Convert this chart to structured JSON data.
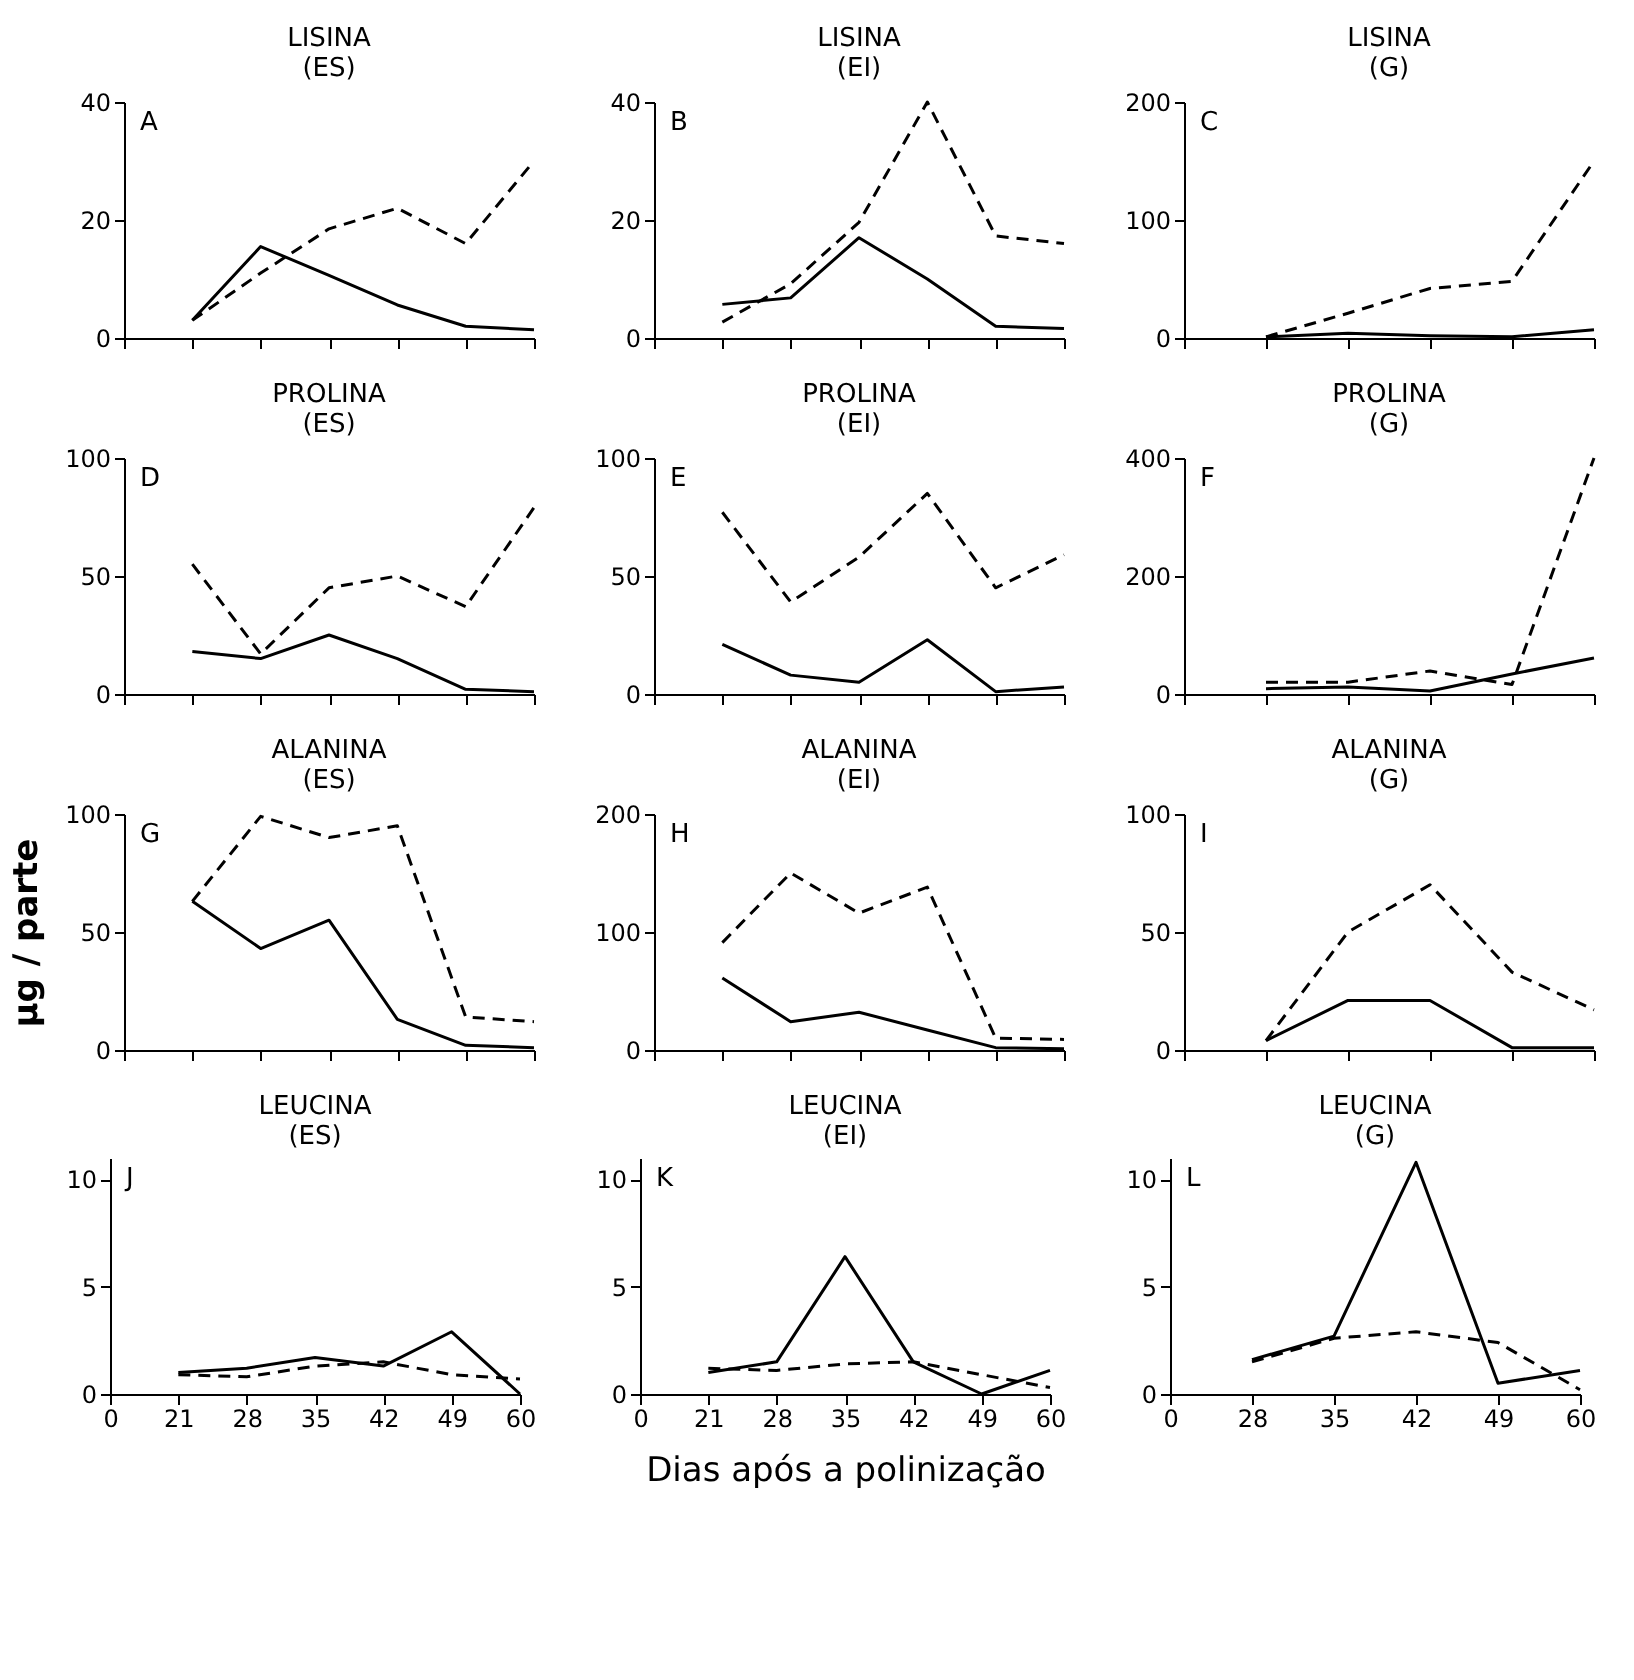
{
  "chart_data": [
    {
      "type": "line",
      "title": "LISINA",
      "subtitle": "(ES)",
      "annotations": [
        "A"
      ],
      "categories": [
        "0",
        "21",
        "28",
        "35",
        "42",
        "49",
        "60"
      ],
      "ylim": [
        0,
        40
      ],
      "yticks": [
        0,
        20,
        40
      ],
      "grid": false,
      "tick_labels": "y",
      "series": [
        {
          "color": "#000000",
          "line_style": "solid",
          "values": [
            null,
            3,
            15.5,
            10.6,
            5.6,
            2,
            1.4
          ]
        },
        {
          "color": "#000000",
          "line_style": "dashed",
          "values": [
            null,
            3,
            11,
            18.5,
            22,
            16,
            30
          ]
        }
      ]
    },
    {
      "type": "line",
      "title": "LISINA",
      "subtitle": "(EI)",
      "annotations": [
        "B"
      ],
      "categories": [
        "0",
        "21",
        "28",
        "35",
        "42",
        "49",
        "60"
      ],
      "ylim": [
        0,
        40
      ],
      "yticks": [
        0,
        20,
        40
      ],
      "grid": false,
      "tick_labels": "y",
      "series": [
        {
          "color": "#000000",
          "line_style": "solid",
          "values": [
            null,
            5.7,
            6.8,
            17,
            10,
            2,
            1.6
          ]
        },
        {
          "color": "#000000",
          "line_style": "dashed",
          "values": [
            null,
            2.7,
            9.2,
            19.6,
            40,
            17.3,
            16
          ]
        }
      ]
    },
    {
      "type": "line",
      "title": "LISINA",
      "subtitle": "(G)",
      "annotations": [
        "C"
      ],
      "categories": [
        "0",
        "28",
        "35",
        "42",
        "49",
        "60"
      ],
      "ylim": [
        0,
        200
      ],
      "yticks": [
        0,
        100,
        200
      ],
      "grid": false,
      "tick_labels": "y",
      "series": [
        {
          "color": "#000000",
          "line_style": "solid",
          "values": [
            null,
            1,
            4,
            2,
            1,
            7
          ]
        },
        {
          "color": "#000000",
          "line_style": "dashed",
          "values": [
            null,
            1,
            21,
            42,
            48,
            150
          ]
        }
      ]
    },
    {
      "type": "line",
      "title": "PROLINA",
      "subtitle": "(ES)",
      "annotations": [
        "D"
      ],
      "categories": [
        "0",
        "21",
        "28",
        "35",
        "42",
        "49",
        "60"
      ],
      "ylim": [
        0,
        100
      ],
      "yticks": [
        0,
        50,
        100
      ],
      "grid": false,
      "tick_labels": "y",
      "series": [
        {
          "color": "#000000",
          "line_style": "solid",
          "values": [
            null,
            18,
            15,
            25,
            15,
            2,
            1
          ]
        },
        {
          "color": "#000000",
          "line_style": "dashed",
          "values": [
            null,
            55,
            17,
            45,
            50,
            37,
            79
          ]
        }
      ]
    },
    {
      "type": "line",
      "title": "PROLINA",
      "subtitle": "(EI)",
      "annotations": [
        "E"
      ],
      "categories": [
        "0",
        "21",
        "28",
        "35",
        "42",
        "49",
        "60"
      ],
      "ylim": [
        0,
        100
      ],
      "yticks": [
        0,
        50,
        100
      ],
      "grid": false,
      "tick_labels": "y",
      "series": [
        {
          "color": "#000000",
          "line_style": "solid",
          "values": [
            null,
            21,
            8,
            5,
            23,
            1,
            3
          ]
        },
        {
          "color": "#000000",
          "line_style": "dashed",
          "values": [
            null,
            77,
            39,
            58,
            85,
            45,
            59
          ]
        }
      ]
    },
    {
      "type": "line",
      "title": "PROLINA",
      "subtitle": "(G)",
      "annotations": [
        "F"
      ],
      "categories": [
        "0",
        "28",
        "35",
        "42",
        "49",
        "60"
      ],
      "ylim": [
        0,
        400
      ],
      "yticks": [
        0,
        200,
        400
      ],
      "grid": false,
      "tick_labels": "y",
      "series": [
        {
          "color": "#000000",
          "line_style": "solid",
          "values": [
            null,
            9,
            12,
            5,
            34,
            61
          ]
        },
        {
          "color": "#000000",
          "line_style": "dashed",
          "values": [
            null,
            20,
            20,
            39,
            16,
            400
          ]
        }
      ]
    },
    {
      "type": "line",
      "title": "ALANINA",
      "subtitle": "(ES)",
      "ylabel": "µg / parte",
      "annotations": [
        "G"
      ],
      "categories": [
        "0",
        "21",
        "28",
        "35",
        "42",
        "49",
        "60"
      ],
      "ylim": [
        0,
        100
      ],
      "yticks": [
        0,
        50,
        100
      ],
      "grid": false,
      "tick_labels": "y",
      "series": [
        {
          "color": "#000000",
          "line_style": "solid",
          "values": [
            null,
            63,
            43,
            55,
            13,
            2,
            1
          ]
        },
        {
          "color": "#000000",
          "line_style": "dashed",
          "values": [
            null,
            63,
            99,
            90,
            95,
            14,
            12
          ]
        }
      ]
    },
    {
      "type": "line",
      "title": "ALANINA",
      "subtitle": "(EI)",
      "annotations": [
        "H"
      ],
      "categories": [
        "0",
        "21",
        "28",
        "35",
        "42",
        "49",
        "60"
      ],
      "ylim": [
        0,
        200
      ],
      "yticks": [
        0,
        100,
        200
      ],
      "grid": false,
      "tick_labels": "y",
      "series": [
        {
          "color": "#000000",
          "line_style": "solid",
          "values": [
            null,
            61,
            24,
            32,
            17,
            2,
            1
          ]
        },
        {
          "color": "#000000",
          "line_style": "dashed",
          "values": [
            null,
            91,
            150,
            116,
            138,
            10,
            9
          ]
        }
      ]
    },
    {
      "type": "line",
      "title": "ALANINA",
      "subtitle": "(G)",
      "annotations": [
        "I"
      ],
      "categories": [
        "0",
        "28",
        "35",
        "42",
        "49",
        "60"
      ],
      "ylim": [
        0,
        100
      ],
      "yticks": [
        0,
        50,
        100
      ],
      "grid": false,
      "tick_labels": "y",
      "series": [
        {
          "color": "#000000",
          "line_style": "solid",
          "values": [
            null,
            4,
            21,
            21,
            1,
            1
          ]
        },
        {
          "color": "#000000",
          "line_style": "dashed",
          "values": [
            null,
            4,
            50,
            70,
            33,
            17
          ]
        }
      ]
    },
    {
      "type": "line",
      "title": "LEUCINA",
      "subtitle": "(ES)",
      "annotations": [
        "J"
      ],
      "categories": [
        "0",
        "21",
        "28",
        "35",
        "42",
        "49",
        "60"
      ],
      "ylim": [
        0,
        11
      ],
      "yticks": [
        0,
        5,
        10
      ],
      "grid": false,
      "series": [
        {
          "color": "#000000",
          "line_style": "solid",
          "values": [
            null,
            1.0,
            1.2,
            1.7,
            1.3,
            2.9,
            0
          ]
        },
        {
          "color": "#000000",
          "line_style": "dashed",
          "values": [
            null,
            0.9,
            0.8,
            1.3,
            1.5,
            0.9,
            0.7
          ]
        }
      ]
    },
    {
      "type": "line",
      "title": "LEUCINA",
      "subtitle": "(EI)",
      "xlabel": "Dias após a polinização",
      "annotations": [
        "K"
      ],
      "categories": [
        "0",
        "21",
        "28",
        "35",
        "42",
        "49",
        "60"
      ],
      "ylim": [
        0,
        11
      ],
      "yticks": [
        0,
        5,
        10
      ],
      "grid": false,
      "series": [
        {
          "color": "#000000",
          "line_style": "solid",
          "values": [
            null,
            1.0,
            1.5,
            6.4,
            1.5,
            0,
            1.1
          ]
        },
        {
          "color": "#000000",
          "line_style": "dashed",
          "values": [
            null,
            1.2,
            1.1,
            1.4,
            1.5,
            0.9,
            0.3
          ]
        }
      ]
    },
    {
      "type": "line",
      "title": "LEUCINA",
      "subtitle": "(G)",
      "annotations": [
        "L"
      ],
      "categories": [
        "0",
        "28",
        "35",
        "42",
        "49",
        "60"
      ],
      "ylim": [
        0,
        11
      ],
      "yticks": [
        0,
        5,
        10
      ],
      "grid": false,
      "series": [
        {
          "color": "#000000",
          "line_style": "solid",
          "values": [
            null,
            1.6,
            2.7,
            10.8,
            0.5,
            1.1
          ]
        },
        {
          "color": "#000000",
          "line_style": "dashed",
          "values": [
            null,
            1.5,
            2.6,
            2.9,
            2.4,
            0.2
          ]
        }
      ]
    }
  ]
}
